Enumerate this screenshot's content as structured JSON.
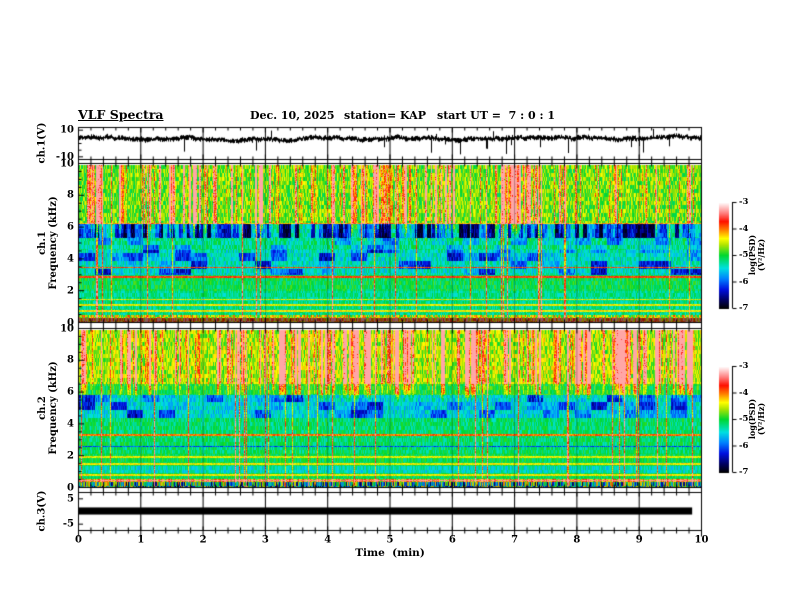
{
  "header": {
    "title": "VLF Spectra",
    "date": "Dec. 10, 2025",
    "station": "station= KAP",
    "start_ut": "start UT =  7 : 0 : 1"
  },
  "xaxis": {
    "label": "Time  (min)",
    "min": 0,
    "max": 10,
    "tick_values": [
      0,
      1,
      2,
      3,
      4,
      5,
      6,
      7,
      8,
      9,
      10
    ],
    "minor_step_min": 0.2
  },
  "panels": {
    "ch1_wave": {
      "ylabel": "ch.1(V)",
      "ytick_values": [
        10,
        -10
      ],
      "ylim": [
        -10,
        10
      ]
    },
    "ch1_spec": {
      "ylabel": "ch.1\nFrequency (kHz)",
      "ytick_values": [
        0,
        2,
        4,
        6,
        8,
        10
      ],
      "ylim": [
        0,
        10
      ],
      "minor_step_khz": 0.5
    },
    "ch2_spec": {
      "ylabel": "ch.2\nFrequency (kHz)",
      "ytick_values": [
        0,
        2,
        4,
        6,
        8,
        10
      ],
      "ylim": [
        0,
        10
      ],
      "minor_step_khz": 0.5
    },
    "ch3_wave": {
      "ylabel": "ch.3(V)",
      "ytick_values": [
        5,
        -5
      ],
      "ylim": [
        -5,
        5
      ]
    }
  },
  "colorbar": {
    "label": "log(PSD)(V²/Hz)",
    "tick_values": [
      -3,
      -4,
      -5,
      -6,
      -7
    ],
    "range": [
      -7,
      -3
    ],
    "stops": [
      {
        "p": 0.0,
        "c": "#000000"
      },
      {
        "p": 0.08,
        "c": "#000060"
      },
      {
        "p": 0.18,
        "c": "#0010e0"
      },
      {
        "p": 0.28,
        "c": "#0080ff"
      },
      {
        "p": 0.38,
        "c": "#00e0e0"
      },
      {
        "p": 0.5,
        "c": "#00d830"
      },
      {
        "p": 0.6,
        "c": "#b0e400"
      },
      {
        "p": 0.66,
        "c": "#ffff00"
      },
      {
        "p": 0.74,
        "c": "#ff8000"
      },
      {
        "p": 0.82,
        "c": "#ff1000"
      },
      {
        "p": 0.9,
        "c": "#ff8080"
      },
      {
        "p": 1.0,
        "c": "#ffffff"
      }
    ]
  },
  "chart_data": [
    {
      "type": "line",
      "name": "ch.1 waveform",
      "ylabel": "ch.1(V)",
      "xlim": [
        0,
        10
      ],
      "ylim": [
        -10,
        10
      ],
      "baseline_v": 4.0,
      "noise_band_v": 1.6,
      "down_spike_rate": 0.035,
      "down_spike_depth_v": [
        -6,
        -11
      ],
      "up_spike_rate": 0.004,
      "up_spike_height_v": [
        7,
        10
      ],
      "grid": "vertical line every 1 min"
    },
    {
      "type": "heatmap",
      "name": "ch.1 spectrogram",
      "xlim": [
        0,
        10
      ],
      "ylim": [
        0,
        10
      ],
      "zlabel": "log(PSD)(V²/Hz)",
      "zlim": [
        -7,
        -3
      ],
      "streak_fmin": 6.3,
      "streak_gain": 2.2,
      "sferic_rate": 0.05,
      "sferic_strength": [
        0.26,
        0.48
      ],
      "bands": [
        {
          "f0": 6.3,
          "f1": 10.01,
          "base": 0.56,
          "var": 0.1
        },
        {
          "f0": 5.4,
          "f1": 6.3,
          "base": 0.22,
          "var": 0.08,
          "valt": 0.22
        },
        {
          "f0": 4.6,
          "f1": 5.4,
          "base": 0.44,
          "var": 0.08,
          "patch": 0.12
        },
        {
          "f0": 3.0,
          "f1": 4.6,
          "base": 0.4,
          "var": 0.08,
          "patch": 0.16
        },
        {
          "f0": 2.0,
          "f1": 3.0,
          "base": 0.48,
          "var": 0.07
        },
        {
          "f0": 0.5,
          "f1": 2.0,
          "base": 0.44,
          "var": 0.06
        },
        {
          "f0": 0.28,
          "f1": 0.5,
          "base": 0.62,
          "var": 0.18
        },
        {
          "f0": 0.0,
          "f1": 0.28,
          "base": 0.8,
          "var": 0.2,
          "mul": 0.55
        }
      ],
      "hlines": [
        {
          "f": 0.75,
          "w": 0.05,
          "v": 0.66
        },
        {
          "f": 1.1,
          "w": 0.05,
          "v": 0.65
        },
        {
          "f": 1.45,
          "w": 0.04,
          "v": 0.64
        },
        {
          "f": 2.9,
          "w": 0.05,
          "v": 0.8
        },
        {
          "f": 3.5,
          "w": 0.04,
          "v": 0.78
        },
        {
          "f": 6.3,
          "w": 0.04,
          "v": 0.7
        }
      ]
    },
    {
      "type": "heatmap",
      "name": "ch.2 spectrogram",
      "xlim": [
        0,
        10
      ],
      "ylim": [
        0,
        10
      ],
      "zlabel": "log(PSD)(V²/Hz)",
      "zlim": [
        -7,
        -3
      ],
      "streak_fmin": 6.6,
      "streak_gain": 3.0,
      "sferic_rate": 0.05,
      "sferic_strength": [
        0.26,
        0.48
      ],
      "bands": [
        {
          "f0": 6.6,
          "f1": 10.01,
          "base": 0.6,
          "var": 0.1
        },
        {
          "f0": 5.9,
          "f1": 6.6,
          "base": 0.5,
          "var": 0.08
        },
        {
          "f0": 4.4,
          "f1": 5.9,
          "base": 0.38,
          "var": 0.08,
          "patch": 0.14
        },
        {
          "f0": 2.2,
          "f1": 4.4,
          "base": 0.46,
          "var": 0.07
        },
        {
          "f0": 1.35,
          "f1": 2.2,
          "base": 0.48,
          "var": 0.06
        },
        {
          "f0": 0.9,
          "f1": 1.35,
          "base": 0.4,
          "var": 0.07
        },
        {
          "f0": 0.55,
          "f1": 0.9,
          "base": 0.48,
          "var": 0.06
        },
        {
          "f0": 0.35,
          "f1": 0.55,
          "base": 0.72,
          "var": 0.2
        },
        {
          "f0": 0.0,
          "f1": 0.35,
          "base": 0.4,
          "var": 0.35,
          "mul": 0.85
        }
      ],
      "hlines": [
        {
          "f": 0.8,
          "w": 0.05,
          "v": 0.66
        },
        {
          "f": 1.5,
          "w": 0.04,
          "v": 0.65
        },
        {
          "f": 1.95,
          "w": 0.04,
          "v": 0.64
        },
        {
          "f": 2.6,
          "w": 0.04,
          "v": 0.24
        },
        {
          "f": 3.35,
          "w": 0.04,
          "v": 0.75
        },
        {
          "f": 0.45,
          "w": 0.04,
          "v": 0.92
        }
      ]
    },
    {
      "type": "line",
      "name": "ch.3 status bar",
      "ylabel": "ch.3(V)",
      "xlim": [
        0,
        10
      ],
      "ylim": [
        -5,
        5
      ],
      "bar": {
        "x0_min": 0,
        "x1_min": 9.85,
        "v_top": 1.6,
        "v_bottom": -1.2
      }
    }
  ]
}
